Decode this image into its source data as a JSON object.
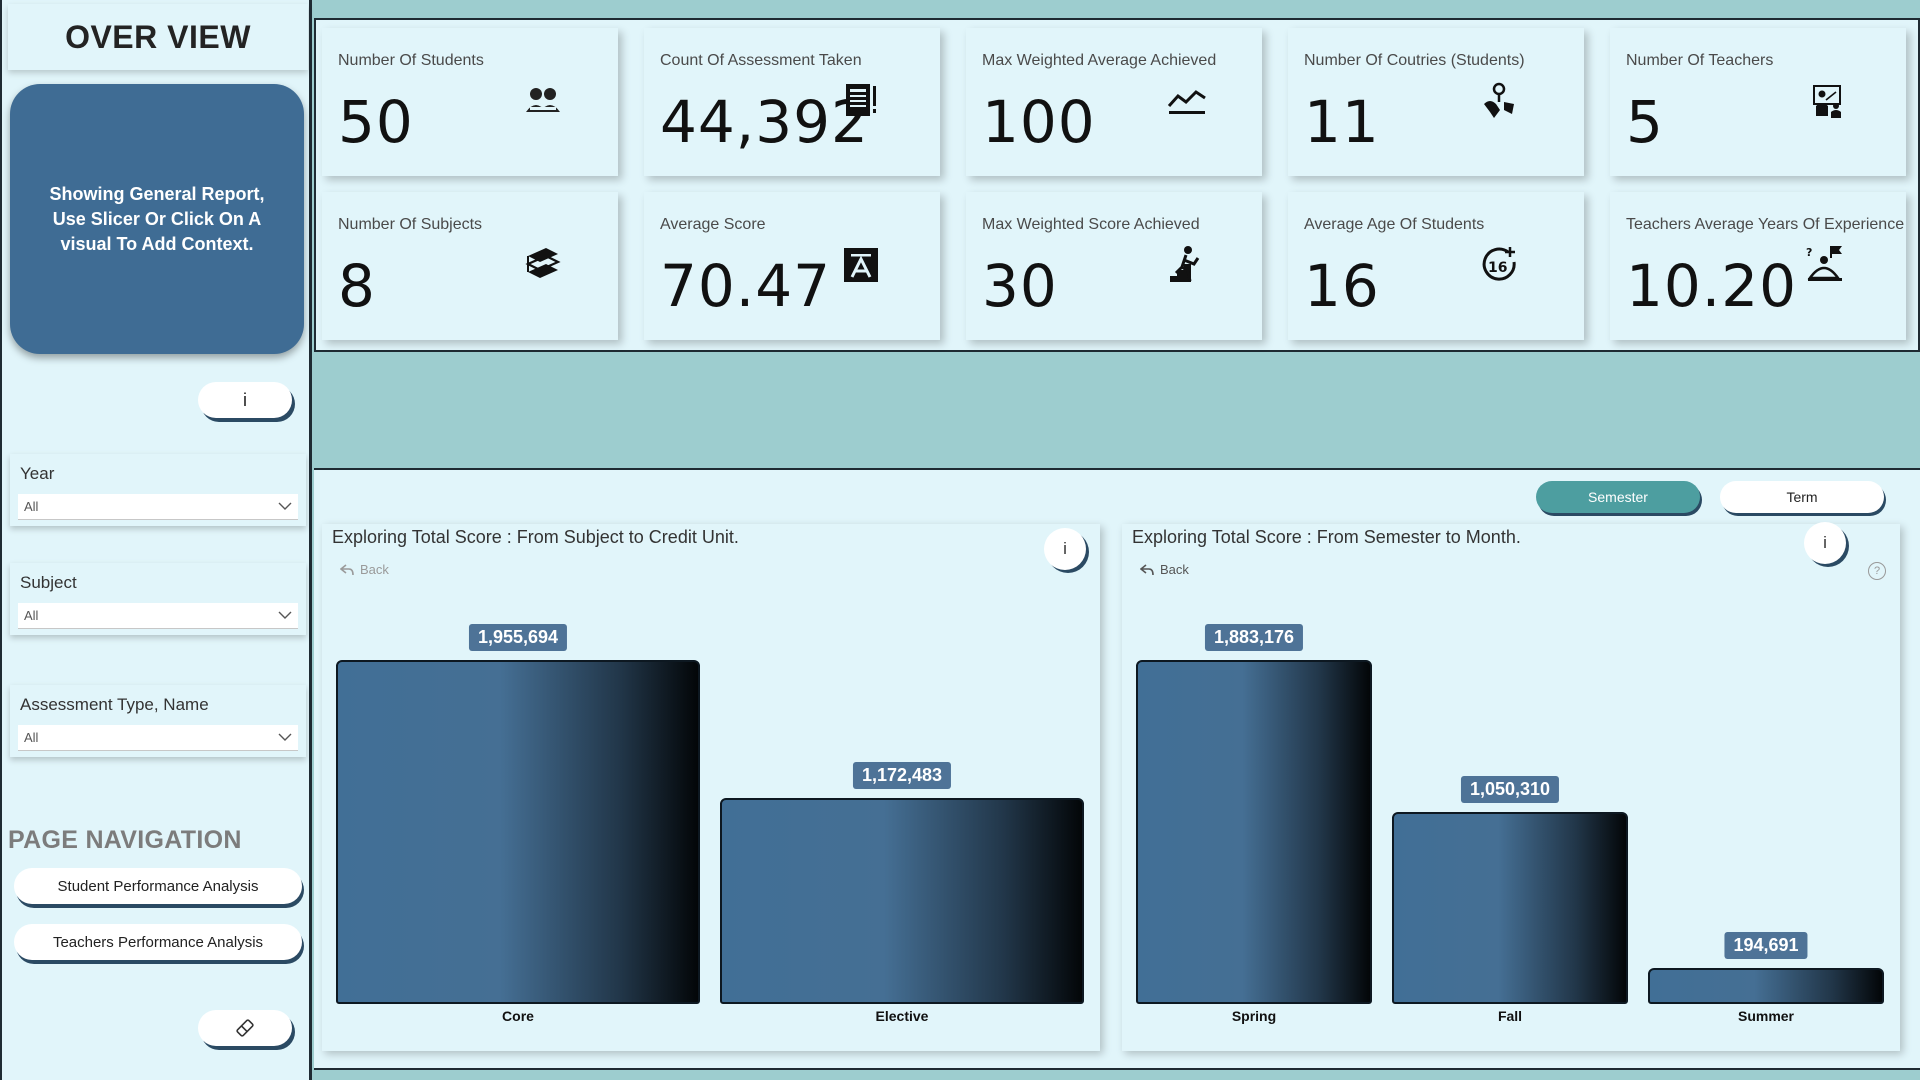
{
  "sidebar": {
    "title": "OVER VIEW",
    "info_text": "Showing General Report, Use Slicer Or Click On A visual To Add Context.",
    "info_button": "i",
    "slicers": [
      {
        "label": "Year",
        "value": "All"
      },
      {
        "label": "Subject",
        "value": "All"
      },
      {
        "label": "Assessment Type, Name",
        "value": "All"
      }
    ],
    "nav_heading": "PAGE NAVIGATION",
    "nav_buttons": [
      "Student Performance Analysis",
      "Teachers Performance Analysis"
    ],
    "eraser_icon": "eraser-icon"
  },
  "kpis": [
    {
      "label": "Number Of Students",
      "value": "50",
      "icon": "students-icon"
    },
    {
      "label": "Count Of Assessment Taken",
      "value": "44,392",
      "icon": "document-icon"
    },
    {
      "label": "Max Weighted Average Achieved",
      "value": "100",
      "icon": "trend-line-icon"
    },
    {
      "label": "Number Of Coutries (Students)",
      "value": "11",
      "icon": "globe-pin-icon"
    },
    {
      "label": "Number Of Teachers",
      "value": "5",
      "icon": "teacher-icon"
    },
    {
      "label": "Number Of Subjects",
      "value": "8",
      "icon": "books-icon"
    },
    {
      "label": "Average Score",
      "value": "70.47",
      "icon": "grade-a-icon"
    },
    {
      "label": "Max Weighted Score Achieved",
      "value": "30",
      "icon": "climbing-stairs-icon"
    },
    {
      "label": "Average Age Of Students",
      "value": "16",
      "icon": "age-16-icon"
    },
    {
      "label": "Teachers Average Years Of Experience",
      "value": "10.20",
      "icon": "experience-icon"
    }
  ],
  "toggles": {
    "active": "Semester",
    "inactive": "Term",
    "active_color": "#4d9ea0"
  },
  "charts": {
    "left": {
      "title": "Exploring Total Score : From Subject to Credit Unit.",
      "back": "Back",
      "info": "i"
    },
    "right": {
      "title": "Exploring Total Score : From Semester to Month.",
      "back": "Back",
      "info": "i",
      "help": "?"
    }
  },
  "chart_data": [
    {
      "type": "bar",
      "title": "Exploring Total Score : From Subject to Credit Unit.",
      "categories": [
        "Core",
        "Elective"
      ],
      "values": [
        1955694,
        1172483
      ],
      "labels": [
        "1,955,694",
        "1,172,483"
      ],
      "ylim": [
        0,
        1955694
      ]
    },
    {
      "type": "bar",
      "title": "Exploring Total Score : From Semester to Month.",
      "categories": [
        "Spring",
        "Fall",
        "Summer"
      ],
      "values": [
        1883176,
        1050310,
        194691
      ],
      "labels": [
        "1,883,176",
        "1,050,310",
        "194,691"
      ],
      "ylim": [
        0,
        1883176
      ]
    }
  ],
  "colors": {
    "bar_start": "#416f96",
    "bar_end": "#030608",
    "label_bg": "#4e7397",
    "panel_bg": "#e1f5fa",
    "teal_bg": "#9dcdcf"
  }
}
